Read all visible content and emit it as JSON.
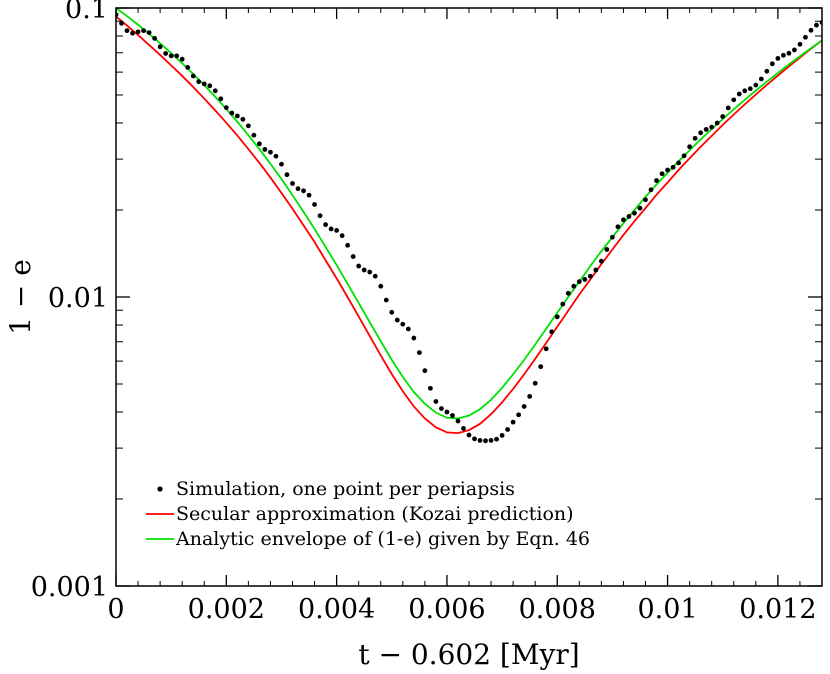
{
  "chart_data": {
    "type": "line",
    "title": "",
    "xlabel": "t − 0.602 [Myr]",
    "ylabel": "1 − e",
    "xlim": [
      0,
      0.0128
    ],
    "ylim": [
      0.001,
      0.1
    ],
    "yscale": "log",
    "xticks": [
      {
        "value": 0,
        "label": "0"
      },
      {
        "value": 0.002,
        "label": "0.002"
      },
      {
        "value": 0.004,
        "label": "0.004"
      },
      {
        "value": 0.006,
        "label": "0.006"
      },
      {
        "value": 0.008,
        "label": "0.008"
      },
      {
        "value": 0.01,
        "label": "0.01"
      },
      {
        "value": 0.012,
        "label": "0.012"
      }
    ],
    "yticks": [
      {
        "value": 0.001,
        "label": "0.001"
      },
      {
        "value": 0.01,
        "label": "0.01"
      },
      {
        "value": 0.1,
        "label": "0.1"
      }
    ],
    "grid": false,
    "legend_position": "bottom-left",
    "series": [
      {
        "name": "Simulation, one point per periapsis",
        "kind": "scatter",
        "color": "#000000",
        "x": [
          0.0,
          0.0001,
          0.0002,
          0.0003,
          0.0004,
          0.0005,
          0.0006,
          0.0007,
          0.0008,
          0.0009,
          0.001,
          0.0011,
          0.0012,
          0.0013,
          0.0014,
          0.0015,
          0.0016,
          0.0017,
          0.0018,
          0.0019,
          0.002,
          0.0021,
          0.0022,
          0.0023,
          0.0024,
          0.0025,
          0.0026,
          0.0027,
          0.0028,
          0.0029,
          0.003,
          0.0031,
          0.0032,
          0.0033,
          0.0034,
          0.0035,
          0.0036,
          0.0037,
          0.0038,
          0.0039,
          0.004,
          0.0041,
          0.0042,
          0.0043,
          0.0044,
          0.0045,
          0.0046,
          0.0047,
          0.0048,
          0.0049,
          0.005,
          0.0051,
          0.0052,
          0.0053,
          0.0054,
          0.0055,
          0.0056,
          0.0057,
          0.0058,
          0.0059,
          0.006,
          0.0061,
          0.0062,
          0.0063,
          0.0064,
          0.0065,
          0.0066,
          0.0067,
          0.0068,
          0.0069,
          0.007,
          0.0071,
          0.0072,
          0.0073,
          0.0074,
          0.0075,
          0.0076,
          0.0077,
          0.0078,
          0.0079,
          0.008,
          0.0081,
          0.0082,
          0.0083,
          0.0084,
          0.0085,
          0.0086,
          0.0087,
          0.0088,
          0.0089,
          0.009,
          0.0091,
          0.0092,
          0.0093,
          0.0094,
          0.0095,
          0.0096,
          0.0097,
          0.0098,
          0.0099,
          0.01,
          0.0101,
          0.0102,
          0.0103,
          0.0104,
          0.0105,
          0.0106,
          0.0107,
          0.0108,
          0.0109,
          0.011,
          0.0111,
          0.0112,
          0.0113,
          0.0114,
          0.0115,
          0.0116,
          0.0117,
          0.0118,
          0.0119,
          0.012,
          0.0121,
          0.0122,
          0.0123,
          0.0124,
          0.0125,
          0.0126,
          0.0127,
          0.0128
        ],
        "y": [
          0.0948,
          0.0885,
          0.0835,
          0.0818,
          0.0827,
          0.0835,
          0.0822,
          0.0785,
          0.0734,
          0.0696,
          0.0683,
          0.0683,
          0.0665,
          0.0623,
          0.0582,
          0.0556,
          0.0546,
          0.0538,
          0.0517,
          0.0485,
          0.0452,
          0.0433,
          0.0423,
          0.0412,
          0.0391,
          0.0363,
          0.0339,
          0.0324,
          0.0317,
          0.0307,
          0.0288,
          0.0265,
          0.0247,
          0.0237,
          0.0233,
          0.0225,
          0.0209,
          0.0191,
          0.0178,
          0.0172,
          0.017,
          0.0163,
          0.0151,
          0.0138,
          0.0128,
          0.0124,
          0.0122,
          0.0118,
          0.0109,
          0.00976,
          0.00885,
          0.00832,
          0.00805,
          0.00775,
          0.00721,
          0.00642,
          0.00556,
          0.00483,
          0.00435,
          0.00411,
          0.004,
          0.00389,
          0.00372,
          0.00351,
          0.00333,
          0.00323,
          0.00319,
          0.00318,
          0.00319,
          0.00322,
          0.00332,
          0.00348,
          0.00369,
          0.00391,
          0.00418,
          0.00453,
          0.00503,
          0.00574,
          0.00662,
          0.00758,
          0.00854,
          0.00945,
          0.0103,
          0.0109,
          0.0113,
          0.0115,
          0.0118,
          0.0124,
          0.0133,
          0.0146,
          0.0161,
          0.0175,
          0.0185,
          0.019,
          0.0195,
          0.0203,
          0.0217,
          0.0235,
          0.0253,
          0.0267,
          0.0275,
          0.0281,
          0.0291,
          0.0308,
          0.0331,
          0.0354,
          0.037,
          0.038,
          0.0387,
          0.04,
          0.0421,
          0.0451,
          0.0481,
          0.0504,
          0.0517,
          0.0526,
          0.0541,
          0.0568,
          0.0604,
          0.0641,
          0.0669,
          0.0686,
          0.0697,
          0.0716,
          0.0749,
          0.0792,
          0.0837,
          0.0872,
          0.0891
        ]
      },
      {
        "name": "Secular approximation (Kozai prediction)",
        "kind": "line",
        "color": "#ff0000",
        "x": [
          0.0,
          0.0002,
          0.0004,
          0.0006,
          0.0008,
          0.001,
          0.0012,
          0.0014,
          0.0016,
          0.0018,
          0.002,
          0.0022,
          0.0024,
          0.0026,
          0.0028,
          0.003,
          0.0032,
          0.0034,
          0.0036,
          0.0038,
          0.004,
          0.0042,
          0.0044,
          0.0046,
          0.0048,
          0.005,
          0.0052,
          0.0054,
          0.0056,
          0.0058,
          0.006,
          0.0062,
          0.0064,
          0.0066,
          0.0068,
          0.007,
          0.0072,
          0.0074,
          0.0076,
          0.0078,
          0.008,
          0.0082,
          0.0084,
          0.0086,
          0.0088,
          0.009,
          0.0092,
          0.0094,
          0.0096,
          0.0098,
          0.01,
          0.0102,
          0.0104,
          0.0106,
          0.0108,
          0.011,
          0.0112,
          0.0114,
          0.0116,
          0.0118,
          0.012,
          0.0122,
          0.0124,
          0.0126,
          0.0128
        ],
        "y": [
          0.0935,
          0.0869,
          0.0806,
          0.0745,
          0.0688,
          0.0633,
          0.0582,
          0.0533,
          0.0486,
          0.0442,
          0.0401,
          0.0362,
          0.0325,
          0.0291,
          0.0259,
          0.0229,
          0.0202,
          0.0177,
          0.0155,
          0.0134,
          0.0116,
          0.00998,
          0.00856,
          0.00733,
          0.00628,
          0.00541,
          0.00472,
          0.00418,
          0.0038,
          0.00354,
          0.0034,
          0.00338,
          0.00346,
          0.00364,
          0.00393,
          0.00432,
          0.00481,
          0.0054,
          0.00611,
          0.00694,
          0.00789,
          0.00897,
          0.0102,
          0.0115,
          0.013,
          0.0146,
          0.0164,
          0.0183,
          0.0203,
          0.0226,
          0.0249,
          0.0275,
          0.0302,
          0.0331,
          0.0361,
          0.0394,
          0.0428,
          0.0464,
          0.0502,
          0.0542,
          0.0584,
          0.0628,
          0.0674,
          0.0723,
          0.0773
        ]
      },
      {
        "name": "Analytic envelope of (1-e) given by Eqn. 46",
        "kind": "line",
        "color": "#00e000",
        "x": [
          0.0,
          0.0002,
          0.0004,
          0.0006,
          0.0008,
          0.001,
          0.0012,
          0.0014,
          0.0016,
          0.0018,
          0.002,
          0.0022,
          0.0024,
          0.0026,
          0.0028,
          0.003,
          0.0032,
          0.0034,
          0.0036,
          0.0038,
          0.004,
          0.0042,
          0.0044,
          0.0046,
          0.0048,
          0.005,
          0.0052,
          0.0054,
          0.0056,
          0.0058,
          0.006,
          0.0062,
          0.0064,
          0.0066,
          0.0068,
          0.007,
          0.0072,
          0.0074,
          0.0076,
          0.0078,
          0.008,
          0.0082,
          0.0084,
          0.0086,
          0.0088,
          0.009,
          0.0092,
          0.0094,
          0.0096,
          0.0098,
          0.01,
          0.0102,
          0.0104,
          0.0106,
          0.0108,
          0.011,
          0.0112,
          0.0114,
          0.0116,
          0.0118,
          0.012,
          0.0122,
          0.0124,
          0.0126,
          0.0128
        ],
        "y": [
          0.1,
          0.0937,
          0.0875,
          0.0814,
          0.0755,
          0.0698,
          0.0644,
          0.0591,
          0.0541,
          0.0493,
          0.0447,
          0.0404,
          0.0363,
          0.0325,
          0.0289,
          0.0256,
          0.0225,
          0.0197,
          0.0172,
          0.0149,
          0.0129,
          0.0111,
          0.00953,
          0.00818,
          0.00703,
          0.00606,
          0.00529,
          0.00469,
          0.00427,
          0.00398,
          0.00382,
          0.0038,
          0.00389,
          0.00409,
          0.00441,
          0.00485,
          0.0054,
          0.00606,
          0.00685,
          0.00777,
          0.00882,
          0.01,
          0.0113,
          0.0128,
          0.0144,
          0.0161,
          0.018,
          0.02,
          0.0222,
          0.0245,
          0.0269,
          0.0295,
          0.0322,
          0.0351,
          0.0381,
          0.0413,
          0.0446,
          0.0481,
          0.0518,
          0.0556,
          0.0596,
          0.0638,
          0.0681,
          0.0726,
          0.0773
        ]
      }
    ]
  }
}
